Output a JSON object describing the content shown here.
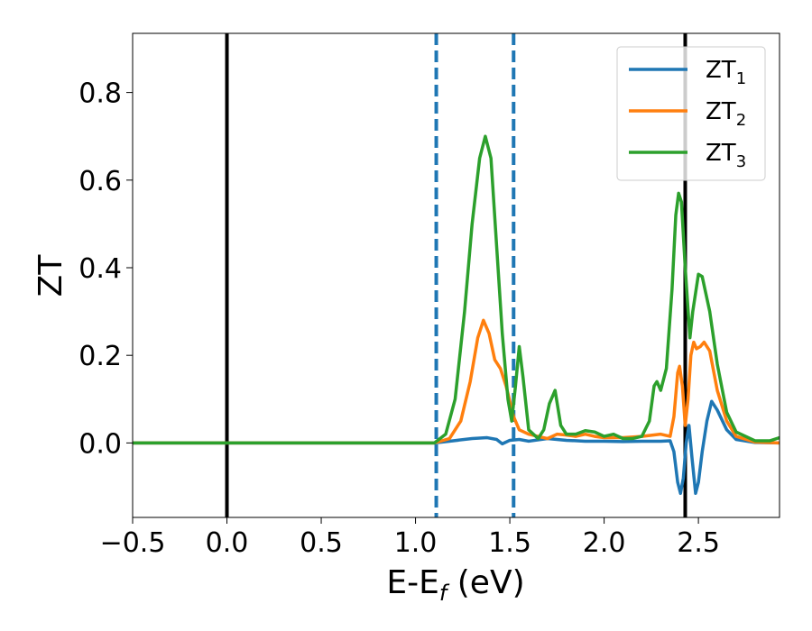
{
  "chart_data": {
    "type": "line",
    "xlabel": "E-E",
    "xlabel_sub": "f",
    "xlabel_unit": " (eV)",
    "ylabel": "ZT",
    "xlim": [
      -0.5,
      2.93
    ],
    "ylim": [
      -0.17,
      0.935
    ],
    "x_ticks": [
      -0.5,
      0.0,
      0.5,
      1.0,
      1.5,
      2.0,
      2.5
    ],
    "x_tick_labels": [
      "−0.5",
      "0.0",
      "0.5",
      "1.0",
      "1.5",
      "2.0",
      "2.5"
    ],
    "y_ticks": [
      0.0,
      0.2,
      0.4,
      0.6,
      0.8
    ],
    "y_tick_labels": [
      "0.0",
      "0.2",
      "0.4",
      "0.6",
      "0.8"
    ],
    "vertical_lines": [
      {
        "x": 0.0,
        "style": "solid",
        "color": "#000000"
      },
      {
        "x": 1.11,
        "style": "dashed",
        "color": "#1f77b4"
      },
      {
        "x": 1.52,
        "style": "dashed",
        "color": "#1f77b4"
      },
      {
        "x": 2.43,
        "style": "solid",
        "color": "#000000"
      }
    ],
    "legend": {
      "placement": "top-right"
    },
    "series": [
      {
        "name": "ZT",
        "name_sub": "1",
        "color": "#1f77b4",
        "points": [
          [
            -0.5,
            0
          ],
          [
            1.1,
            0
          ],
          [
            1.2,
            0.005
          ],
          [
            1.3,
            0.01
          ],
          [
            1.38,
            0.012
          ],
          [
            1.43,
            0.008
          ],
          [
            1.46,
            -0.002
          ],
          [
            1.5,
            0.006
          ],
          [
            1.55,
            0.008
          ],
          [
            1.6,
            0.004
          ],
          [
            1.7,
            0.01
          ],
          [
            1.8,
            0.006
          ],
          [
            1.9,
            0.004
          ],
          [
            2.0,
            0.004
          ],
          [
            2.1,
            0.003
          ],
          [
            2.2,
            0.004
          ],
          [
            2.3,
            0.004
          ],
          [
            2.35,
            0.005
          ],
          [
            2.37,
            -0.02
          ],
          [
            2.39,
            -0.09
          ],
          [
            2.405,
            -0.115
          ],
          [
            2.42,
            -0.08
          ],
          [
            2.435,
            0.0
          ],
          [
            2.45,
            0.04
          ],
          [
            2.465,
            -0.03
          ],
          [
            2.485,
            -0.115
          ],
          [
            2.5,
            -0.09
          ],
          [
            2.52,
            -0.02
          ],
          [
            2.545,
            0.05
          ],
          [
            2.57,
            0.095
          ],
          [
            2.6,
            0.075
          ],
          [
            2.65,
            0.03
          ],
          [
            2.7,
            0.008
          ],
          [
            2.8,
            0.001
          ],
          [
            2.93,
            0
          ]
        ]
      },
      {
        "name": "ZT",
        "name_sub": "2",
        "color": "#ff7f0e",
        "points": [
          [
            -0.5,
            0
          ],
          [
            1.1,
            0
          ],
          [
            1.18,
            0.01
          ],
          [
            1.24,
            0.05
          ],
          [
            1.29,
            0.14
          ],
          [
            1.33,
            0.24
          ],
          [
            1.36,
            0.28
          ],
          [
            1.39,
            0.25
          ],
          [
            1.42,
            0.19
          ],
          [
            1.45,
            0.17
          ],
          [
            1.48,
            0.13
          ],
          [
            1.52,
            0.06
          ],
          [
            1.55,
            0.03
          ],
          [
            1.6,
            0.02
          ],
          [
            1.7,
            0.01
          ],
          [
            1.75,
            0.02
          ],
          [
            1.8,
            0.018
          ],
          [
            1.85,
            0.015
          ],
          [
            1.9,
            0.02
          ],
          [
            1.95,
            0.015
          ],
          [
            2.0,
            0.012
          ],
          [
            2.1,
            0.012
          ],
          [
            2.2,
            0.015
          ],
          [
            2.3,
            0.02
          ],
          [
            2.35,
            0.015
          ],
          [
            2.37,
            0.06
          ],
          [
            2.39,
            0.16
          ],
          [
            2.4,
            0.175
          ],
          [
            2.415,
            0.13
          ],
          [
            2.43,
            0.04
          ],
          [
            2.445,
            0.1
          ],
          [
            2.46,
            0.2
          ],
          [
            2.475,
            0.23
          ],
          [
            2.49,
            0.215
          ],
          [
            2.51,
            0.22
          ],
          [
            2.53,
            0.23
          ],
          [
            2.56,
            0.21
          ],
          [
            2.6,
            0.12
          ],
          [
            2.65,
            0.05
          ],
          [
            2.7,
            0.015
          ],
          [
            2.8,
            0.002
          ],
          [
            2.93,
            0
          ]
        ]
      },
      {
        "name": "ZT",
        "name_sub": "3",
        "color": "#2ca02c",
        "points": [
          [
            -0.5,
            0
          ],
          [
            1.1,
            0
          ],
          [
            1.16,
            0.02
          ],
          [
            1.21,
            0.1
          ],
          [
            1.26,
            0.3
          ],
          [
            1.3,
            0.5
          ],
          [
            1.34,
            0.65
          ],
          [
            1.37,
            0.7
          ],
          [
            1.4,
            0.65
          ],
          [
            1.43,
            0.45
          ],
          [
            1.46,
            0.25
          ],
          [
            1.49,
            0.1
          ],
          [
            1.51,
            0.05
          ],
          [
            1.53,
            0.13
          ],
          [
            1.55,
            0.22
          ],
          [
            1.57,
            0.15
          ],
          [
            1.6,
            0.03
          ],
          [
            1.65,
            0.01
          ],
          [
            1.68,
            0.03
          ],
          [
            1.71,
            0.09
          ],
          [
            1.74,
            0.12
          ],
          [
            1.77,
            0.04
          ],
          [
            1.8,
            0.02
          ],
          [
            1.85,
            0.02
          ],
          [
            1.9,
            0.028
          ],
          [
            1.95,
            0.025
          ],
          [
            2.0,
            0.015
          ],
          [
            2.05,
            0.02
          ],
          [
            2.1,
            0.01
          ],
          [
            2.15,
            0.01
          ],
          [
            2.2,
            0.015
          ],
          [
            2.24,
            0.05
          ],
          [
            2.265,
            0.13
          ],
          [
            2.28,
            0.14
          ],
          [
            2.3,
            0.12
          ],
          [
            2.33,
            0.17
          ],
          [
            2.36,
            0.35
          ],
          [
            2.38,
            0.52
          ],
          [
            2.395,
            0.57
          ],
          [
            2.41,
            0.55
          ],
          [
            2.43,
            0.4
          ],
          [
            2.455,
            0.24
          ],
          [
            2.47,
            0.3
          ],
          [
            2.5,
            0.385
          ],
          [
            2.52,
            0.38
          ],
          [
            2.56,
            0.3
          ],
          [
            2.6,
            0.18
          ],
          [
            2.65,
            0.07
          ],
          [
            2.7,
            0.025
          ],
          [
            2.8,
            0.005
          ],
          [
            2.88,
            0.005
          ],
          [
            2.93,
            0.012
          ]
        ]
      }
    ]
  }
}
